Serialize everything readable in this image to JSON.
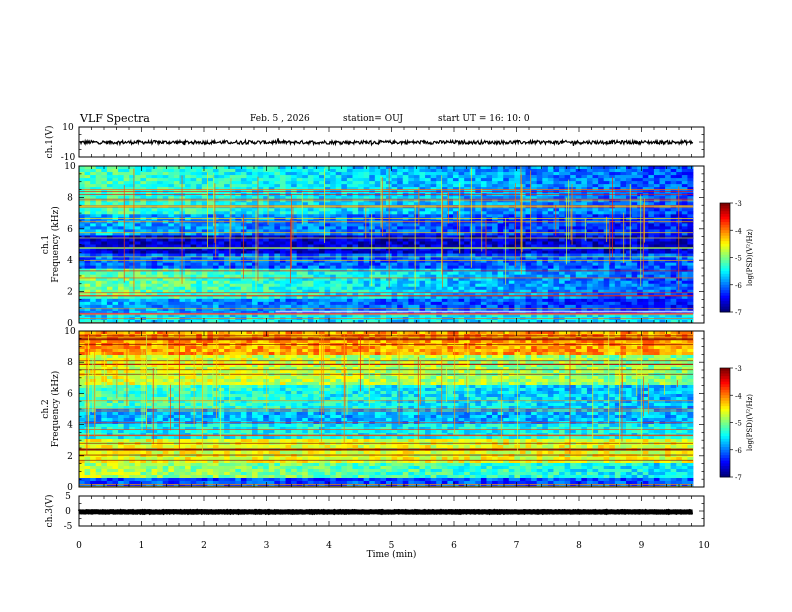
{
  "header": {
    "title": "VLF Spectra",
    "date": "Feb. 5 , 2026",
    "station": "station= OUJ",
    "start": "start UT = 16: 10: 0"
  },
  "chart_data": [
    {
      "type": "line",
      "panel": "ch1-waveform",
      "ylabel": "ch.1(V)",
      "ylim": [
        -10,
        10
      ],
      "yticks": [
        "10",
        "-10"
      ],
      "xlim": [
        0,
        10
      ],
      "series": [
        {
          "level": -0.2,
          "noise": 1.2
        }
      ]
    },
    {
      "type": "heatmap",
      "panel": "ch1-spectrogram",
      "ylabel_top": "ch.1",
      "ylabel": "Frequency (kHz)",
      "ylim": [
        0,
        10
      ],
      "yticks": [
        "0",
        "2",
        "4",
        "6",
        "8",
        "10"
      ],
      "xlim": [
        0,
        9.85
      ],
      "colorbar": {
        "label": "log(PSD)(V²/Hz)",
        "min": -7,
        "max": -3,
        "ticks": [
          "-3",
          "-4",
          "-5",
          "-6",
          "-7"
        ]
      }
    },
    {
      "type": "heatmap",
      "panel": "ch2-spectrogram",
      "ylabel_top": "ch.2",
      "ylabel": "Frequency (kHz)",
      "ylim": [
        0,
        10
      ],
      "yticks": [
        "0",
        "2",
        "4",
        "6",
        "8",
        "10"
      ],
      "xlim": [
        0,
        9.85
      ],
      "colorbar": {
        "label": "log(PSD)(V²/Hz)",
        "min": -7,
        "max": -3,
        "ticks": [
          "-3",
          "-4",
          "-5",
          "-6",
          "-7"
        ]
      }
    },
    {
      "type": "line",
      "panel": "ch3-waveform",
      "ylabel": "ch.3(V)",
      "ylim": [
        -5,
        5
      ],
      "yticks": [
        "5",
        "0",
        "-5"
      ],
      "xlim": [
        0,
        10
      ],
      "xlabel": "Time (min)",
      "xticks": [
        "0",
        "1",
        "2",
        "3",
        "4",
        "5",
        "6",
        "7",
        "8",
        "9",
        "10"
      ],
      "series": [
        {
          "level": -0.3,
          "noise": 0.1
        }
      ]
    }
  ]
}
